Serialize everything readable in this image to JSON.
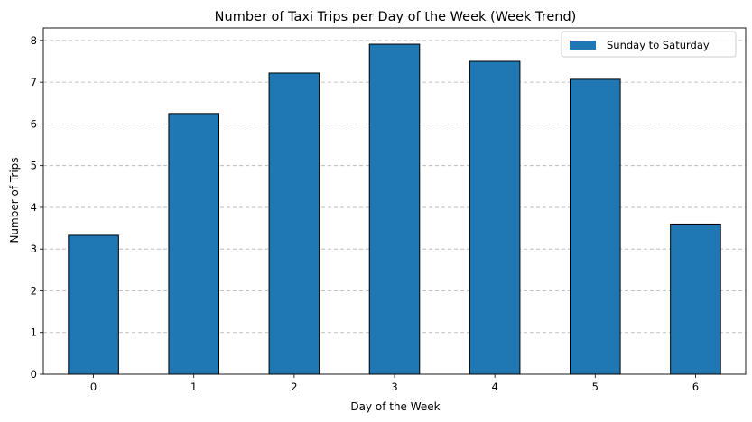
{
  "chart_data": {
    "type": "bar",
    "title": "Number of Taxi Trips per Day of the Week (Week Trend)",
    "xlabel": "Day of the Week",
    "ylabel": "Number of Trips",
    "categories": [
      "0",
      "1",
      "2",
      "3",
      "4",
      "5",
      "6"
    ],
    "series": [
      {
        "name": "Sunday to Saturday",
        "values": [
          3.33,
          6.25,
          7.22,
          7.91,
          7.5,
          7.07,
          3.6
        ]
      }
    ],
    "ylim": [
      0,
      8.3
    ],
    "yticks": [
      0,
      1,
      2,
      3,
      4,
      5,
      6,
      7,
      8
    ],
    "grid": "y-dashed",
    "legend_position": "top-right",
    "colors": {
      "bar": "#1f77b4",
      "edge": "#000000",
      "grid": "#b0b0b0"
    }
  }
}
